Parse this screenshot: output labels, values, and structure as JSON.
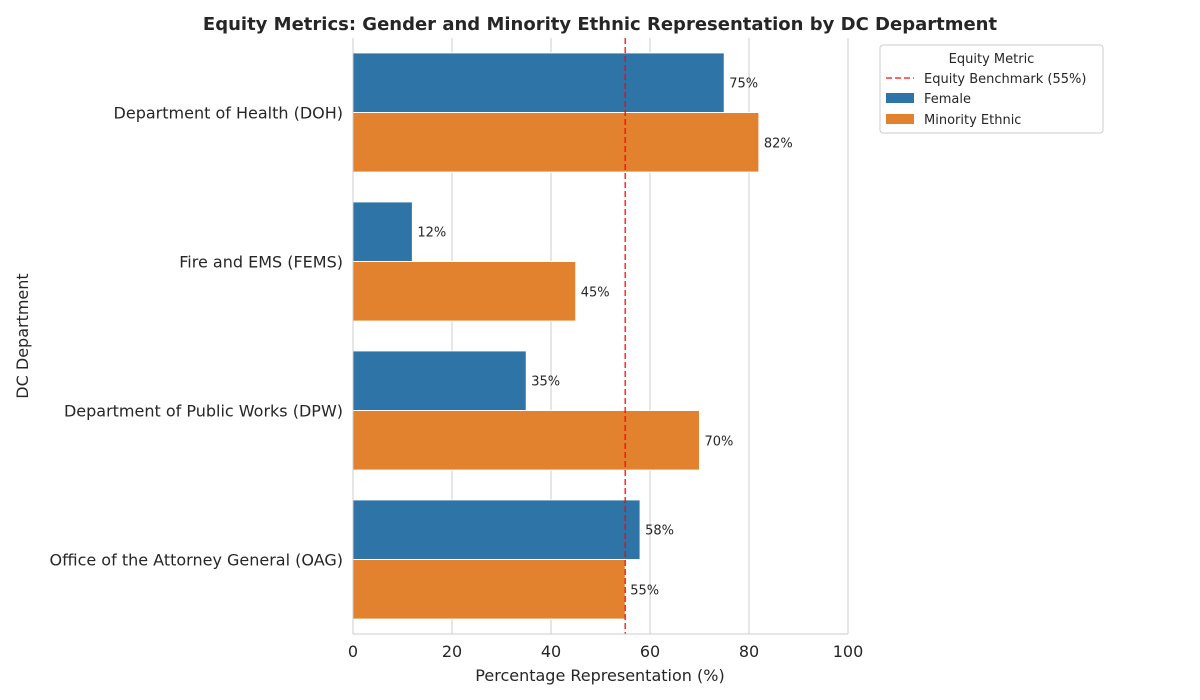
{
  "chart_data": {
    "type": "bar",
    "orientation": "horizontal",
    "title": "Equity Metrics: Gender and Minority Ethnic Representation by DC Department",
    "xlabel": "Percentage Representation (%)",
    "ylabel": "DC Department",
    "xlim": [
      0,
      100
    ],
    "xticks": [
      0,
      20,
      40,
      60,
      80,
      100
    ],
    "grid": "vertical",
    "categories": [
      "Department of Health (DOH)",
      "Fire and EMS (FEMS)",
      "Department of Public Works (DPW)",
      "Office of the Attorney General (OAG)"
    ],
    "series": [
      {
        "name": "Female",
        "color": "#2e74a6",
        "values": [
          75,
          12,
          35,
          58
        ]
      },
      {
        "name": "Minority Ethnic",
        "color": "#e2822e",
        "values": [
          82,
          45,
          70,
          55
        ]
      }
    ],
    "data_label_suffix": "%",
    "reference_line": {
      "value": 55,
      "label": "Equity Benchmark (55%)",
      "color": "#ff0000",
      "style": "dashed"
    },
    "legend": {
      "title": "Equity Metric",
      "placement": "outside-top-right"
    }
  }
}
